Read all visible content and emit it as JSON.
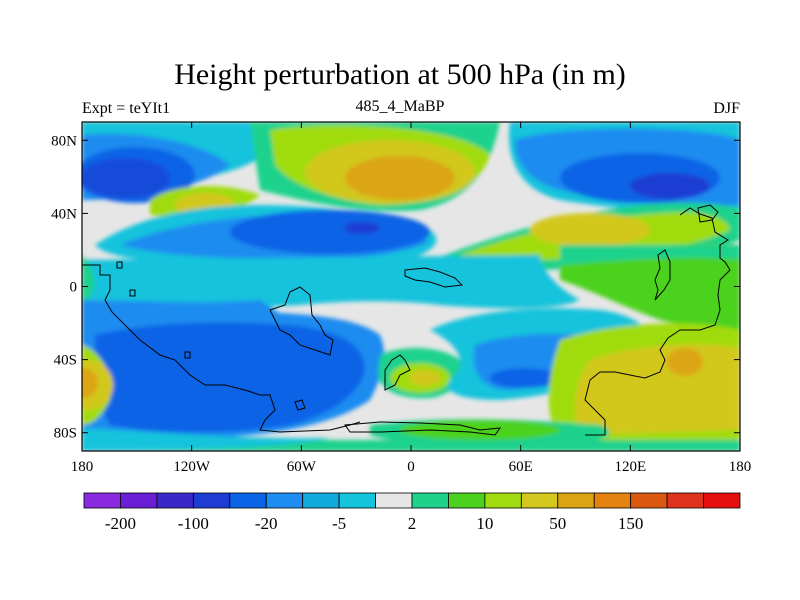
{
  "title": "Height perturbation at 500 hPa (in m)",
  "left_string": "Expt = teYIt1",
  "center_string": "485_4_MaBP",
  "right_string": "DJF",
  "map": {
    "projection": "cylindrical-equidistant",
    "lon_range": [
      -180,
      180
    ],
    "lat_range": [
      -90,
      90
    ],
    "x_ticks": [
      "180",
      "120W",
      "60W",
      "0",
      "60E",
      "120E",
      "180"
    ],
    "y_ticks": [
      "80N",
      "40N",
      "0",
      "40S",
      "80S"
    ]
  },
  "colorbar": {
    "colors": [
      "#8a2be2",
      "#6a1fd6",
      "#3c28c8",
      "#1e3cd2",
      "#0a64e6",
      "#1e8cf0",
      "#12aadc",
      "#14c3dc",
      "#e6e6e6",
      "#1ed28c",
      "#4bd21e",
      "#a0dc0f",
      "#d2c81e",
      "#dca514",
      "#e6820f",
      "#dc5a0f",
      "#e1321e",
      "#e60f0f"
    ],
    "labels": [
      "-200",
      "-100",
      "-20",
      "-5",
      "2",
      "10",
      "50",
      "150"
    ]
  }
}
